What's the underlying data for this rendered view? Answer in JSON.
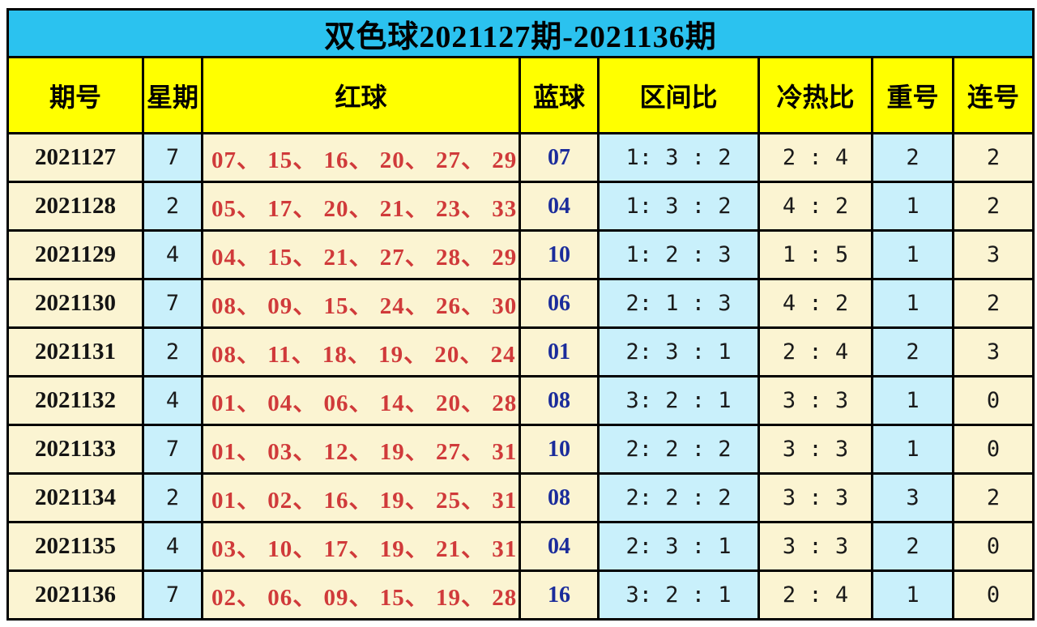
{
  "colors": {
    "title_bar_bg": "#2bc2ef",
    "header_bg": "#ffff00",
    "cell_cream_bg": "#fbf4d2",
    "cell_blue_bg": "#c9f0fb",
    "red_ball_text": "#d03a3a",
    "blue_ball_text": "#1b2c9b",
    "border": "#000000"
  },
  "chart_data": {
    "type": "table",
    "title": "双色球2021127期-2021136期",
    "columns": [
      {
        "key": "period",
        "label": "期号"
      },
      {
        "key": "weekday",
        "label": "星期"
      },
      {
        "key": "red_balls",
        "label": "红球"
      },
      {
        "key": "blue_ball",
        "label": "蓝球"
      },
      {
        "key": "zone_ratio",
        "label": "区间比"
      },
      {
        "key": "cold_hot_ratio",
        "label": "冷热比"
      },
      {
        "key": "repeat_count",
        "label": "重号"
      },
      {
        "key": "consecutive_count",
        "label": "连号"
      }
    ],
    "red_ball_separator": "、",
    "rows": [
      {
        "period": "2021127",
        "weekday": "7",
        "red_balls": [
          "07",
          "15",
          "16",
          "20",
          "27",
          "29"
        ],
        "blue_ball": "07",
        "zone_ratio": "1: 3 : 2",
        "cold_hot_ratio": "2 : 4",
        "repeat_count": "2",
        "consecutive_count": "2"
      },
      {
        "period": "2021128",
        "weekday": "2",
        "red_balls": [
          "05",
          "17",
          "20",
          "21",
          "23",
          "33"
        ],
        "blue_ball": "04",
        "zone_ratio": "1: 3 : 2",
        "cold_hot_ratio": "4 : 2",
        "repeat_count": "1",
        "consecutive_count": "2"
      },
      {
        "period": "2021129",
        "weekday": "4",
        "red_balls": [
          "04",
          "15",
          "21",
          "27",
          "28",
          "29"
        ],
        "blue_ball": "10",
        "zone_ratio": "1: 2 : 3",
        "cold_hot_ratio": "1 : 5",
        "repeat_count": "1",
        "consecutive_count": "3"
      },
      {
        "period": "2021130",
        "weekday": "7",
        "red_balls": [
          "08",
          "09",
          "15",
          "24",
          "26",
          "30"
        ],
        "blue_ball": "06",
        "zone_ratio": "2: 1 : 3",
        "cold_hot_ratio": "4 : 2",
        "repeat_count": "1",
        "consecutive_count": "2"
      },
      {
        "period": "2021131",
        "weekday": "2",
        "red_balls": [
          "08",
          "11",
          "18",
          "19",
          "20",
          "24"
        ],
        "blue_ball": "01",
        "zone_ratio": "2: 3 : 1",
        "cold_hot_ratio": "2 : 4",
        "repeat_count": "2",
        "consecutive_count": "3"
      },
      {
        "period": "2021132",
        "weekday": "4",
        "red_balls": [
          "01",
          "04",
          "06",
          "14",
          "20",
          "28"
        ],
        "blue_ball": "08",
        "zone_ratio": "3: 2 : 1",
        "cold_hot_ratio": "3 : 3",
        "repeat_count": "1",
        "consecutive_count": "0"
      },
      {
        "period": "2021133",
        "weekday": "7",
        "red_balls": [
          "01",
          "03",
          "12",
          "19",
          "27",
          "31"
        ],
        "blue_ball": "10",
        "zone_ratio": "2: 2 : 2",
        "cold_hot_ratio": "3 : 3",
        "repeat_count": "1",
        "consecutive_count": "0"
      },
      {
        "period": "2021134",
        "weekday": "2",
        "red_balls": [
          "01",
          "02",
          "16",
          "19",
          "25",
          "31"
        ],
        "blue_ball": "08",
        "zone_ratio": "2: 2 : 2",
        "cold_hot_ratio": "3 : 3",
        "repeat_count": "3",
        "consecutive_count": "2"
      },
      {
        "period": "2021135",
        "weekday": "4",
        "red_balls": [
          "03",
          "10",
          "17",
          "19",
          "21",
          "31"
        ],
        "blue_ball": "04",
        "zone_ratio": "2: 3 : 1",
        "cold_hot_ratio": "3 : 3",
        "repeat_count": "2",
        "consecutive_count": "0"
      },
      {
        "period": "2021136",
        "weekday": "7",
        "red_balls": [
          "02",
          "06",
          "09",
          "15",
          "19",
          "28"
        ],
        "blue_ball": "16",
        "zone_ratio": "3: 2 : 1",
        "cold_hot_ratio": "2 : 4",
        "repeat_count": "1",
        "consecutive_count": "0"
      }
    ]
  }
}
